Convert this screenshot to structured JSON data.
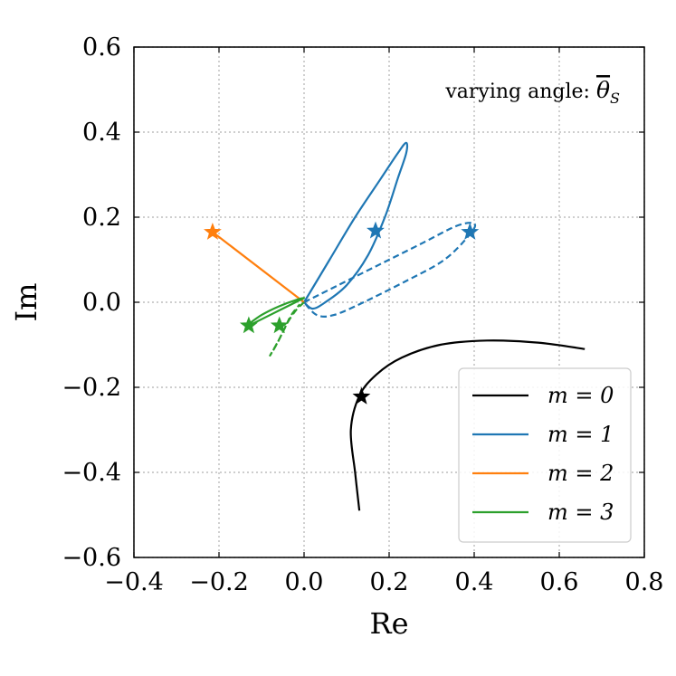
{
  "chart_data": {
    "type": "line",
    "xlabel": "Re",
    "ylabel": "Im",
    "xlim": [
      -0.4,
      0.8
    ],
    "ylim": [
      -0.6,
      0.6
    ],
    "grid": true,
    "xticks": [
      -0.4,
      -0.2,
      0.0,
      0.2,
      0.4,
      0.6,
      0.8
    ],
    "yticks": [
      -0.6,
      -0.4,
      -0.2,
      0.0,
      0.2,
      0.4,
      0.6
    ],
    "xtick_labels": [
      "−0.4",
      "−0.2",
      "0.0",
      "0.2",
      "0.4",
      "0.6",
      "0.8"
    ],
    "ytick_labels": [
      "−0.6",
      "−0.4",
      "−0.2",
      "0.0",
      "0.2",
      "0.4",
      "0.6"
    ],
    "annotation_text": "varying angle: ",
    "annotation_symbol": "θ",
    "annotation_sub": "S",
    "legend_position": "lower-right",
    "series": [
      {
        "name": "m = 0",
        "color": "#000000",
        "segments": [
          {
            "style": "solid",
            "points": [
              [
                0.13,
                -0.49
              ],
              [
                0.12,
                -0.4
              ],
              [
                0.11,
                -0.3
              ],
              [
                0.13,
                -0.22
              ],
              [
                0.17,
                -0.17
              ],
              [
                0.23,
                -0.13
              ],
              [
                0.32,
                -0.1
              ],
              [
                0.43,
                -0.09
              ],
              [
                0.55,
                -0.095
              ],
              [
                0.66,
                -0.11
              ]
            ]
          }
        ],
        "stars": [
          [
            0.135,
            -0.222
          ]
        ]
      },
      {
        "name": "m = 1",
        "color": "#1f77b4",
        "segments": [
          {
            "style": "solid",
            "points": [
              [
                0.0,
                0.0
              ],
              [
                0.06,
                0.1
              ],
              [
                0.12,
                0.2
              ],
              [
                0.18,
                0.29
              ],
              [
                0.22,
                0.35
              ],
              [
                0.24,
                0.375
              ],
              [
                0.24,
                0.35
              ],
              [
                0.22,
                0.29
              ],
              [
                0.19,
                0.2
              ],
              [
                0.15,
                0.11
              ],
              [
                0.1,
                0.04
              ],
              [
                0.05,
                0.0
              ],
              [
                0.02,
                -0.015
              ],
              [
                0.0,
                0.0
              ]
            ]
          },
          {
            "style": "dashed",
            "points": [
              [
                0.0,
                0.0
              ],
              [
                0.08,
                0.04
              ],
              [
                0.18,
                0.09
              ],
              [
                0.28,
                0.14
              ],
              [
                0.36,
                0.18
              ],
              [
                0.4,
                0.185
              ],
              [
                0.39,
                0.16
              ],
              [
                0.33,
                0.1
              ],
              [
                0.24,
                0.05
              ],
              [
                0.14,
                0.0
              ],
              [
                0.07,
                -0.03
              ],
              [
                0.03,
                -0.03
              ],
              [
                0.0,
                0.0
              ]
            ]
          }
        ],
        "stars": [
          [
            0.168,
            0.168
          ],
          [
            0.39,
            0.165
          ]
        ]
      },
      {
        "name": "m = 2",
        "color": "#ff7f0e",
        "segments": [
          {
            "style": "solid",
            "points": [
              [
                0.0,
                0.0
              ],
              [
                -0.215,
                0.165
              ]
            ]
          }
        ],
        "stars": [
          [
            -0.215,
            0.165
          ]
        ]
      },
      {
        "name": "m = 3",
        "color": "#2ca02c",
        "segments": [
          {
            "style": "solid",
            "points": [
              [
                -0.135,
                -0.055
              ],
              [
                -0.1,
                -0.03
              ],
              [
                -0.06,
                -0.01
              ],
              [
                -0.02,
                0.005
              ],
              [
                0.0,
                0.01
              ],
              [
                -0.02,
                0.0
              ],
              [
                -0.06,
                -0.02
              ],
              [
                -0.1,
                -0.04
              ],
              [
                -0.13,
                -0.055
              ]
            ]
          },
          {
            "style": "dashed",
            "points": [
              [
                0.0,
                0.0
              ],
              [
                -0.02,
                -0.02
              ],
              [
                -0.04,
                -0.05
              ],
              [
                -0.06,
                -0.09
              ],
              [
                -0.08,
                -0.125
              ],
              [
                -0.065,
                -0.1
              ],
              [
                -0.045,
                -0.06
              ],
              [
                -0.03,
                -0.03
              ],
              [
                -0.01,
                -0.005
              ]
            ]
          }
        ],
        "stars": [
          [
            -0.13,
            -0.055
          ],
          [
            -0.058,
            -0.055
          ]
        ]
      }
    ]
  }
}
